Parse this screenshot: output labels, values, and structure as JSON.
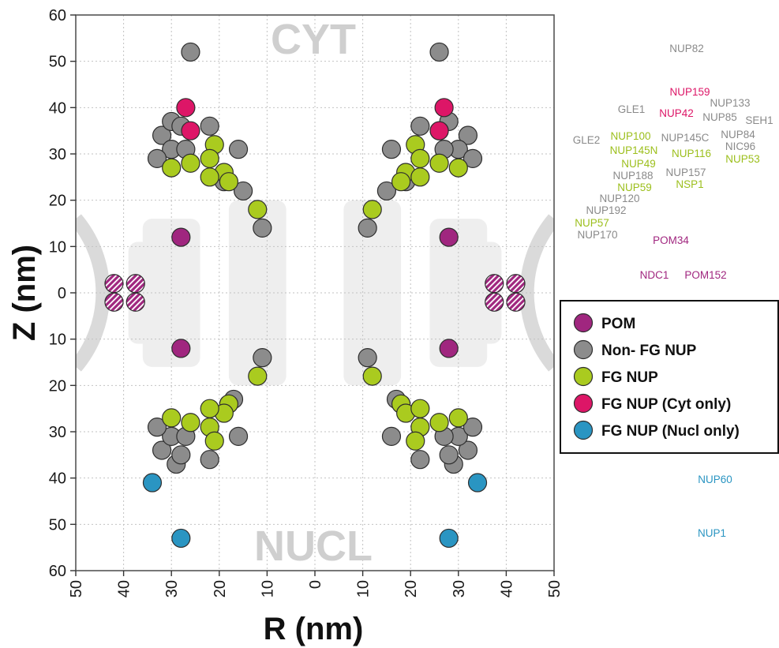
{
  "chart_data": {
    "type": "scatter",
    "xlabel": "R (nm)",
    "ylabel": "Z (nm)",
    "xlim": [
      -50,
      50
    ],
    "ylim": [
      -60,
      60
    ],
    "x_ticks": [
      {
        "value": -50,
        "label": "50"
      },
      {
        "value": -40,
        "label": "40"
      },
      {
        "value": -30,
        "label": "30"
      },
      {
        "value": -20,
        "label": "20"
      },
      {
        "value": -10,
        "label": "10"
      },
      {
        "value": 0,
        "label": "0"
      },
      {
        "value": 10,
        "label": "10"
      },
      {
        "value": 20,
        "label": "20"
      },
      {
        "value": 30,
        "label": "30"
      },
      {
        "value": 40,
        "label": "40"
      },
      {
        "value": 50,
        "label": "50"
      }
    ],
    "y_ticks": [
      {
        "value": 60,
        "label": "60"
      },
      {
        "value": 50,
        "label": "50"
      },
      {
        "value": 40,
        "label": "40"
      },
      {
        "value": 30,
        "label": "30"
      },
      {
        "value": 20,
        "label": "20"
      },
      {
        "value": 10,
        "label": "10"
      },
      {
        "value": 0,
        "label": "0"
      },
      {
        "value": -10,
        "label": "10"
      },
      {
        "value": -20,
        "label": "20"
      },
      {
        "value": -30,
        "label": "30"
      },
      {
        "value": -40,
        "label": "40"
      },
      {
        "value": -50,
        "label": "50"
      },
      {
        "value": -60,
        "label": "60"
      }
    ],
    "grid": true,
    "region_labels": {
      "top": "CYT",
      "bottom": "NUCL"
    },
    "legend": {
      "placement": "right",
      "entries": [
        {
          "label": "POM",
          "color": "#a0267f"
        },
        {
          "label": "Non- FG NUP",
          "color": "#8c8c8c"
        },
        {
          "label": "FG NUP",
          "color": "#aacb1f"
        },
        {
          "label": "FG NUP (Cyt only)",
          "color": "#dd1667"
        },
        {
          "label": "FG NUP (Nucl only)",
          "color": "#2a95c2"
        }
      ]
    },
    "series": [
      {
        "name": "POM",
        "color": "#a0267f",
        "points": [
          [
            -28,
            12
          ],
          [
            28,
            12
          ],
          [
            -28,
            -12
          ],
          [
            28,
            -12
          ]
        ]
      },
      {
        "name": "POM (hatched)",
        "color": "#a0267f",
        "points": [
          [
            -42,
            2
          ],
          [
            -37.5,
            2
          ],
          [
            -42,
            -2
          ],
          [
            -37.5,
            -2
          ],
          [
            37.5,
            2
          ],
          [
            42,
            2
          ],
          [
            37.5,
            -2
          ],
          [
            42,
            -2
          ]
        ]
      },
      {
        "name": "Non- FG NUP",
        "color": "#8c8c8c",
        "points": [
          [
            -26,
            52
          ],
          [
            26,
            52
          ],
          [
            -32,
            34
          ],
          [
            -30,
            31
          ],
          [
            -33,
            29
          ],
          [
            -30,
            37
          ],
          [
            -27,
            31
          ],
          [
            -28,
            36
          ],
          [
            -22,
            36
          ],
          [
            -16,
            31
          ],
          [
            -19,
            24
          ],
          [
            -15,
            22
          ],
          [
            -11,
            14
          ],
          [
            32,
            34
          ],
          [
            30,
            31
          ],
          [
            33,
            29
          ],
          [
            28,
            37
          ],
          [
            27,
            31
          ],
          [
            26,
            35
          ],
          [
            22,
            36
          ],
          [
            16,
            31
          ],
          [
            19,
            24
          ],
          [
            15,
            22
          ],
          [
            11,
            14
          ],
          [
            -32,
            -34
          ],
          [
            -30,
            -31
          ],
          [
            -33,
            -29
          ],
          [
            -29,
            -37
          ],
          [
            -28,
            -35
          ],
          [
            -27,
            -31
          ],
          [
            -22,
            -36
          ],
          [
            -16,
            -31
          ],
          [
            -18,
            -24
          ],
          [
            -17,
            -23
          ],
          [
            -11,
            -14
          ],
          [
            32,
            -34
          ],
          [
            30,
            -31
          ],
          [
            33,
            -29
          ],
          [
            29,
            -37
          ],
          [
            28,
            -35
          ],
          [
            27,
            -31
          ],
          [
            22,
            -36
          ],
          [
            16,
            -31
          ],
          [
            18,
            -24
          ],
          [
            17,
            -23
          ],
          [
            11,
            -14
          ]
        ]
      },
      {
        "name": "FG NUP",
        "color": "#aacb1f",
        "points": [
          [
            -21,
            32
          ],
          [
            -22,
            29
          ],
          [
            -26,
            28
          ],
          [
            -30,
            27
          ],
          [
            -19,
            26
          ],
          [
            -22,
            25
          ],
          [
            -18,
            24
          ],
          [
            -12,
            18
          ],
          [
            21,
            32
          ],
          [
            22,
            29
          ],
          [
            26,
            28
          ],
          [
            30,
            27
          ],
          [
            19,
            26
          ],
          [
            22,
            25
          ],
          [
            18,
            24
          ],
          [
            12,
            18
          ],
          [
            -12,
            -18
          ],
          [
            -18,
            -24
          ],
          [
            -19,
            -26
          ],
          [
            -22,
            -25
          ],
          [
            -22,
            -29
          ],
          [
            -21,
            -32
          ],
          [
            -26,
            -28
          ],
          [
            -30,
            -27
          ],
          [
            12,
            -18
          ],
          [
            18,
            -24
          ],
          [
            19,
            -26
          ],
          [
            22,
            -25
          ],
          [
            22,
            -29
          ],
          [
            21,
            -32
          ],
          [
            26,
            -28
          ],
          [
            30,
            -27
          ]
        ]
      },
      {
        "name": "FG NUP (Cyt only)",
        "color": "#dd1667",
        "points": [
          [
            -27,
            40
          ],
          [
            -26,
            35
          ],
          [
            27,
            40
          ],
          [
            26,
            35
          ]
        ]
      },
      {
        "name": "FG NUP (Nucl only)",
        "color": "#2a95c2",
        "points": [
          [
            -34,
            -41
          ],
          [
            34,
            -41
          ],
          [
            -28,
            -53
          ],
          [
            28,
            -53
          ]
        ]
      }
    ],
    "annotations": [
      {
        "text": "NUP82",
        "color": "#8a8a8a"
      },
      {
        "text": "NUP159",
        "color": "#dd1667"
      },
      {
        "text": "NUP133",
        "color": "#8a8a8a"
      },
      {
        "text": "GLE1",
        "color": "#8a8a8a"
      },
      {
        "text": "NUP42",
        "color": "#dd1667"
      },
      {
        "text": "NUP85",
        "color": "#8a8a8a"
      },
      {
        "text": "SEH1",
        "color": "#8a8a8a"
      },
      {
        "text": "GLE2",
        "color": "#8a8a8a"
      },
      {
        "text": "NUP100",
        "color": "#9cbf1c"
      },
      {
        "text": "NUP145C",
        "color": "#8a8a8a"
      },
      {
        "text": "NUP84",
        "color": "#8a8a8a"
      },
      {
        "text": "NUP145N",
        "color": "#9cbf1c"
      },
      {
        "text": "NIC96",
        "color": "#8a8a8a"
      },
      {
        "text": "NUP116",
        "color": "#9cbf1c"
      },
      {
        "text": "NUP53",
        "color": "#9cbf1c"
      },
      {
        "text": "NUP49",
        "color": "#9cbf1c"
      },
      {
        "text": "NUP188",
        "color": "#8a8a8a"
      },
      {
        "text": "NUP157",
        "color": "#8a8a8a"
      },
      {
        "text": "NUP59",
        "color": "#9cbf1c"
      },
      {
        "text": "NSP1",
        "color": "#9cbf1c"
      },
      {
        "text": "NUP120",
        "color": "#8a8a8a"
      },
      {
        "text": "NUP192",
        "color": "#8a8a8a"
      },
      {
        "text": "NUP57",
        "color": "#9cbf1c"
      },
      {
        "text": "NUP170",
        "color": "#8a8a8a"
      },
      {
        "text": "POM34",
        "color": "#a0267f"
      },
      {
        "text": "NDC1",
        "color": "#a0267f"
      },
      {
        "text": "POM152",
        "color": "#a0267f"
      },
      {
        "text": "NUP60",
        "color": "#2a95c2"
      },
      {
        "text": "NUP1",
        "color": "#2a95c2"
      }
    ]
  }
}
